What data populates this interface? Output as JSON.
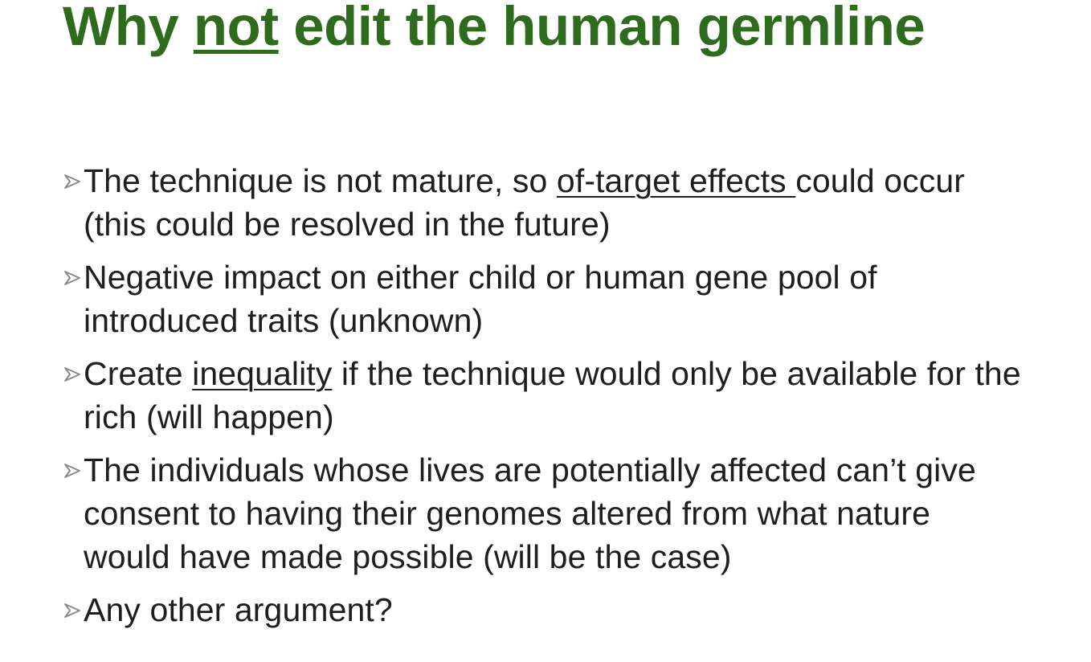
{
  "slide": {
    "title": {
      "prefix": "Why ",
      "emphasis": "not",
      "suffix": " edit the human germline"
    },
    "bullets": [
      {
        "before": "The technique is not mature, so ",
        "underlined": "of-target effects ",
        "after": "could occur (this could be resolved in the future)"
      },
      {
        "before": "Negative impact on either child or human gene pool of introduced traits (unknown)",
        "underlined": "",
        "after": ""
      },
      {
        "before": "Create ",
        "underlined": "inequality",
        "after": " if the technique would only be available for the rich (will happen)"
      },
      {
        "before": "The individuals whose lives are potentially affected can’t give consent to having their genomes altered from what nature would have made possible (will be the case)",
        "underlined": "",
        "after": ""
      },
      {
        "before": "Any other argument?",
        "underlined": "",
        "after": ""
      }
    ],
    "colors": {
      "title": "#2e6b1d",
      "text": "#1e1e1e",
      "bullet_marker": "#8c8c8c"
    },
    "icons": {
      "bullet_marker": "arrowhead-bullet-icon"
    }
  }
}
